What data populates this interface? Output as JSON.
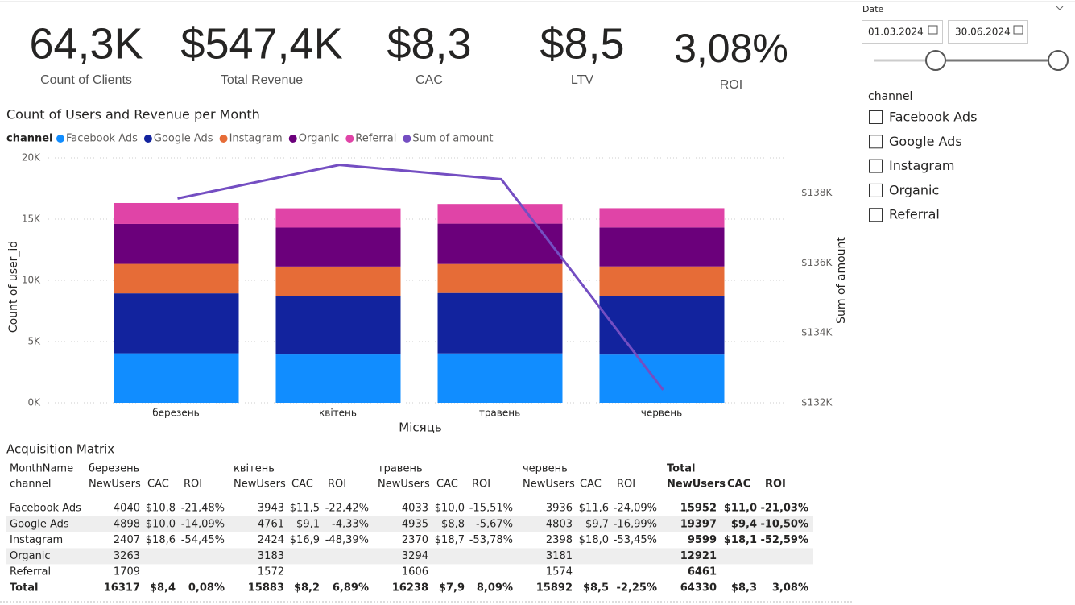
{
  "kpis": [
    {
      "value": "64,3K",
      "label": "Count of Clients"
    },
    {
      "value": "$547,4K",
      "label": "Total Revenue"
    },
    {
      "value": "$8,3",
      "label": "CAC"
    },
    {
      "value": "$8,5",
      "label": "LTV"
    },
    {
      "value": "3,08%",
      "label": "ROI"
    }
  ],
  "chart_data": {
    "type": "bar",
    "title": "Count of Users and Revenue per Month",
    "legend_title": "channel",
    "categories": [
      "березень",
      "квітень",
      "травень",
      "червень"
    ],
    "series": [
      {
        "name": "Facebook Ads",
        "color": "#118dff",
        "values": [
          4040,
          3943,
          4033,
          3936
        ]
      },
      {
        "name": "Google Ads",
        "color": "#12239e",
        "values": [
          4898,
          4761,
          4935,
          4803
        ]
      },
      {
        "name": "Instagram",
        "color": "#e66c37",
        "values": [
          2407,
          2424,
          2370,
          2398
        ]
      },
      {
        "name": "Organic",
        "color": "#6b007b",
        "values": [
          3263,
          3183,
          3294,
          3181
        ]
      },
      {
        "name": "Referral",
        "color": "#e044a7",
        "values": [
          1709,
          1572,
          1606,
          1574
        ]
      },
      {
        "name": "Sum of amount",
        "color": "#744ec2",
        "type": "line",
        "axis": "y2",
        "values": [
          137840,
          138800,
          138390,
          132370
        ]
      }
    ],
    "stacked": true,
    "xlabel": "Місяць",
    "ylabel": "Count of user_id",
    "y2label": "Sum of amount",
    "ylim": [
      0,
      20000
    ],
    "yticks": [
      {
        "value": 0,
        "label": "0K"
      },
      {
        "value": 5000,
        "label": "5K"
      },
      {
        "value": 10000,
        "label": "10K"
      },
      {
        "value": 15000,
        "label": "15K"
      },
      {
        "value": 20000,
        "label": "20K"
      }
    ],
    "y2lim": [
      132000,
      139000
    ],
    "y2ticks": [
      {
        "value": 132000,
        "label": "$132K"
      },
      {
        "value": 134000,
        "label": "$134K"
      },
      {
        "value": 136000,
        "label": "$136K"
      },
      {
        "value": 138000,
        "label": "$138K"
      }
    ],
    "grid": true
  },
  "date_slicer": {
    "title": "Date",
    "start": "01.03.2024",
    "end": "30.06.2024"
  },
  "channel_slicer": {
    "title": "channel",
    "items": [
      "Facebook Ads",
      "Google Ads",
      "Instagram",
      "Organic",
      "Referral"
    ]
  },
  "table": {
    "title": "Acquisition Matrix",
    "row_header": [
      "MonthName",
      "channel"
    ],
    "groups": [
      "березень",
      "квітень",
      "травень",
      "червень",
      "Total"
    ],
    "columns": [
      "NewUsers",
      "CAC",
      "ROI"
    ],
    "rows": [
      {
        "label": "Facebook Ads",
        "cells": [
          "4040",
          "$10,8",
          "-21,48%",
          "3943",
          "$11,5",
          "-22,42%",
          "4033",
          "$10,0",
          "-15,51%",
          "3936",
          "$11,6",
          "-24,09%",
          "15952",
          "$11,0",
          "-21,03%"
        ]
      },
      {
        "label": "Google Ads",
        "cells": [
          "4898",
          "$10,0",
          "-14,09%",
          "4761",
          "$9,1",
          "-4,33%",
          "4935",
          "$8,8",
          "-5,67%",
          "4803",
          "$9,7",
          "-16,99%",
          "19397",
          "$9,4",
          "-10,50%"
        ]
      },
      {
        "label": "Instagram",
        "cells": [
          "2407",
          "$18,6",
          "-54,45%",
          "2424",
          "$16,9",
          "-48,39%",
          "2370",
          "$18,7",
          "-53,78%",
          "2398",
          "$18,0",
          "-53,45%",
          "9599",
          "$18,1",
          "-52,59%"
        ]
      },
      {
        "label": "Organic",
        "cells": [
          "3263",
          null,
          null,
          "3183",
          null,
          null,
          "3294",
          null,
          null,
          "3181",
          null,
          null,
          "12921",
          null,
          null
        ]
      },
      {
        "label": "Referral",
        "cells": [
          "1709",
          null,
          null,
          "1572",
          null,
          null,
          "1606",
          null,
          null,
          "1574",
          null,
          null,
          "6461",
          null,
          null
        ]
      },
      {
        "label": "Total",
        "cells": [
          "16317",
          "$8,4",
          "0,08%",
          "15883",
          "$8,2",
          "6,89%",
          "16238",
          "$7,9",
          "8,09%",
          "15892",
          "$8,5",
          "-2,25%",
          "64330",
          "$8,3",
          "3,08%"
        ]
      }
    ]
  }
}
